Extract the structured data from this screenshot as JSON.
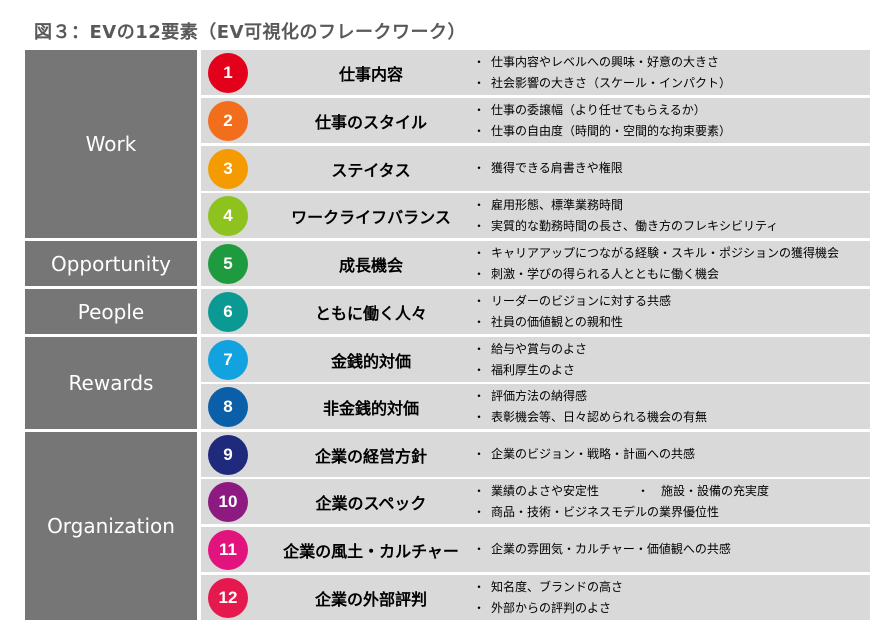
{
  "title": "図３：EVの12要素（EV可視化のフレークワーク）",
  "categories": [
    {
      "label": "Work"
    },
    {
      "label": "Opportunity"
    },
    {
      "label": "People"
    },
    {
      "label": "Rewards"
    },
    {
      "label": "Organization"
    }
  ],
  "elements": [
    {
      "number": "1",
      "label": "仕事内容",
      "color": "#e3001b",
      "details": [
        "仕事内容やレベルへの興味・好意の大きさ",
        "社会影響の大きさ（スケール・インパクト）"
      ]
    },
    {
      "number": "2",
      "label": "仕事のスタイル",
      "color": "#f26e1c",
      "details": [
        "仕事の委譲幅（より任せてもらえるか）",
        "仕事の自由度（時間的・空間的な拘束要素）"
      ]
    },
    {
      "number": "3",
      "label": "ステイタス",
      "color": "#f39b00",
      "details": [
        "獲得できる肩書きや権限"
      ]
    },
    {
      "number": "4",
      "label": "ワークライフバランス",
      "color": "#8dc21f",
      "details": [
        "雇用形態、標準業務時間",
        "実質的な勤務時間の長さ、働き方のフレキシビリティ"
      ]
    },
    {
      "number": "5",
      "label": "成長機会",
      "color": "#1e9a3f",
      "details": [
        "キャリアアップにつながる経験・スキル・ポジションの獲得機会",
        "刺激・学びの得られる人とともに働く機会"
      ]
    },
    {
      "number": "6",
      "label": "ともに働く人々",
      "color": "#0b9a93",
      "details": [
        "リーダーのビジョンに対する共感",
        "社員の価値観との親和性"
      ]
    },
    {
      "number": "7",
      "label": "金銭的対価",
      "color": "#13a2e0",
      "details": [
        "給与や賞与のよさ",
        "福利厚生のよさ"
      ]
    },
    {
      "number": "8",
      "label": "非金銭的対価",
      "color": "#0a5fa8",
      "details": [
        "評価方法の納得感",
        "表彰機会等、日々認められる機会の有無"
      ]
    },
    {
      "number": "9",
      "label": "企業の経営方針",
      "color": "#1f2a7c",
      "details": [
        "企業のビジョン・戦略・計画への共感"
      ]
    },
    {
      "number": "10",
      "label": "企業のスペック",
      "color": "#8d1a80",
      "details": [
        "業績のよさや安定性",
        "商品・技術・ビジネスモデルの業界優位性"
      ],
      "extra": "施設・設備の充実度"
    },
    {
      "number": "11",
      "label": "企業の風土・カルチャー",
      "color": "#e3137d",
      "details": [
        "企業の雰囲気・カルチャー・価値観への共感"
      ]
    },
    {
      "number": "12",
      "label": "企業の外部評判",
      "color": "#e5194d",
      "details": [
        "知名度、ブランドの高さ",
        "外部からの評判のよさ"
      ]
    }
  ]
}
